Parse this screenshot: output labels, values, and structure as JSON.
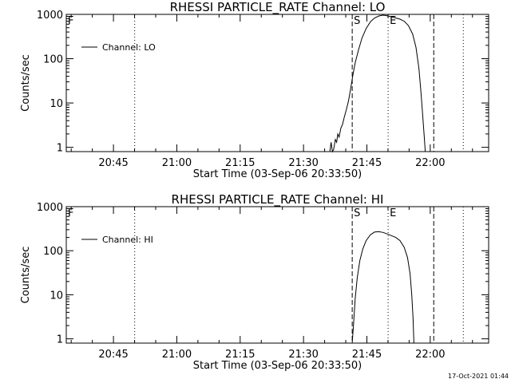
{
  "footer": {
    "timestamp": "17-Oct-2021 01:44"
  },
  "chart_data": [
    {
      "type": "line",
      "title": "RHESSI PARTICLE_RATE Channel: LO",
      "xlabel": "Start Time (03-Sep-06 20:33:50)",
      "ylabel": "Counts/sec",
      "x_unit": "minutes after 20:33:50",
      "x_tick_labels": [
        "20:45",
        "21:00",
        "21:15",
        "21:30",
        "21:45",
        "22:00"
      ],
      "x_ticks": [
        11.17,
        26.17,
        41.17,
        56.17,
        71.17,
        86.17
      ],
      "xlim": [
        0,
        100
      ],
      "y_scale": "log",
      "ylim": [
        0.8,
        1000
      ],
      "y_tick_labels": [
        "1",
        "10",
        "100",
        "1000"
      ],
      "y_ticks": [
        1,
        10,
        100,
        1000
      ],
      "legend": {
        "label": "Channel: LO",
        "position": "top-left"
      },
      "markers": [
        {
          "label": "F",
          "x": 0.0,
          "style": "dotted"
        },
        {
          "label": "",
          "x": 16.2,
          "style": "dotted"
        },
        {
          "label": "S",
          "x": 67.7,
          "style": "dashed"
        },
        {
          "label": "E",
          "x": 76.2,
          "style": "dotted"
        },
        {
          "label": "",
          "x": 87.0,
          "style": "dashed"
        },
        {
          "label": "",
          "x": 94.0,
          "style": "dotted"
        }
      ],
      "series": [
        {
          "name": "Channel: LO",
          "points": [
            [
              62.4,
              0.8
            ],
            [
              62.7,
              1.3
            ],
            [
              63.0,
              0.8
            ],
            [
              63.3,
              0.9
            ],
            [
              63.7,
              1.5
            ],
            [
              64.0,
              1.3
            ],
            [
              64.3,
              2.0
            ],
            [
              64.6,
              1.7
            ],
            [
              65.0,
              2.7
            ],
            [
              65.4,
              3.3
            ],
            [
              65.8,
              4.7
            ],
            [
              66.3,
              7.0
            ],
            [
              66.8,
              11
            ],
            [
              67.3,
              20
            ],
            [
              67.8,
              40
            ],
            [
              68.4,
              80
            ],
            [
              69.2,
              160
            ],
            [
              70.0,
              290
            ],
            [
              71.0,
              480
            ],
            [
              72.0,
              680
            ],
            [
              73.0,
              830
            ],
            [
              74.0,
              920
            ],
            [
              75.0,
              960
            ],
            [
              76.0,
              930
            ],
            [
              77.0,
              880
            ],
            [
              78.0,
              830
            ],
            [
              79.0,
              780
            ],
            [
              80.0,
              700
            ],
            [
              81.0,
              560
            ],
            [
              82.0,
              360
            ],
            [
              82.8,
              180
            ],
            [
              83.5,
              60
            ],
            [
              84.0,
              16
            ],
            [
              84.4,
              5
            ],
            [
              84.8,
              1.5
            ],
            [
              85.0,
              0.8
            ]
          ]
        }
      ]
    },
    {
      "type": "line",
      "title": "RHESSI PARTICLE_RATE Channel: HI",
      "xlabel": "Start Time (03-Sep-06 20:33:50)",
      "ylabel": "Counts/sec",
      "x_unit": "minutes after 20:33:50",
      "x_tick_labels": [
        "20:45",
        "21:00",
        "21:15",
        "21:30",
        "21:45",
        "22:00"
      ],
      "x_ticks": [
        11.17,
        26.17,
        41.17,
        56.17,
        71.17,
        86.17
      ],
      "xlim": [
        0,
        100
      ],
      "y_scale": "log",
      "ylim": [
        0.8,
        1000
      ],
      "y_tick_labels": [
        "1",
        "10",
        "100",
        "1000"
      ],
      "y_ticks": [
        1,
        10,
        100,
        1000
      ],
      "legend": {
        "label": "Channel: HI",
        "position": "top-left"
      },
      "markers": [
        {
          "label": "F",
          "x": 0.0,
          "style": "dotted"
        },
        {
          "label": "",
          "x": 16.2,
          "style": "dotted"
        },
        {
          "label": "S",
          "x": 67.7,
          "style": "dashed"
        },
        {
          "label": "E",
          "x": 76.2,
          "style": "dotted"
        },
        {
          "label": "",
          "x": 87.0,
          "style": "dashed"
        },
        {
          "label": "",
          "x": 94.0,
          "style": "dotted"
        }
      ],
      "series": [
        {
          "name": "Channel: HI",
          "points": [
            [
              67.7,
              0.8
            ],
            [
              68.0,
              2.0
            ],
            [
              68.4,
              8
            ],
            [
              68.9,
              25
            ],
            [
              69.5,
              60
            ],
            [
              70.2,
              110
            ],
            [
              71.0,
              170
            ],
            [
              72.0,
              230
            ],
            [
              73.0,
              265
            ],
            [
              74.0,
              270
            ],
            [
              75.0,
              260
            ],
            [
              76.0,
              240
            ],
            [
              77.0,
              220
            ],
            [
              78.0,
              200
            ],
            [
              79.0,
              170
            ],
            [
              80.0,
              120
            ],
            [
              80.8,
              70
            ],
            [
              81.4,
              30
            ],
            [
              81.8,
              10
            ],
            [
              82.1,
              3
            ],
            [
              82.3,
              0.8
            ]
          ]
        }
      ]
    }
  ]
}
